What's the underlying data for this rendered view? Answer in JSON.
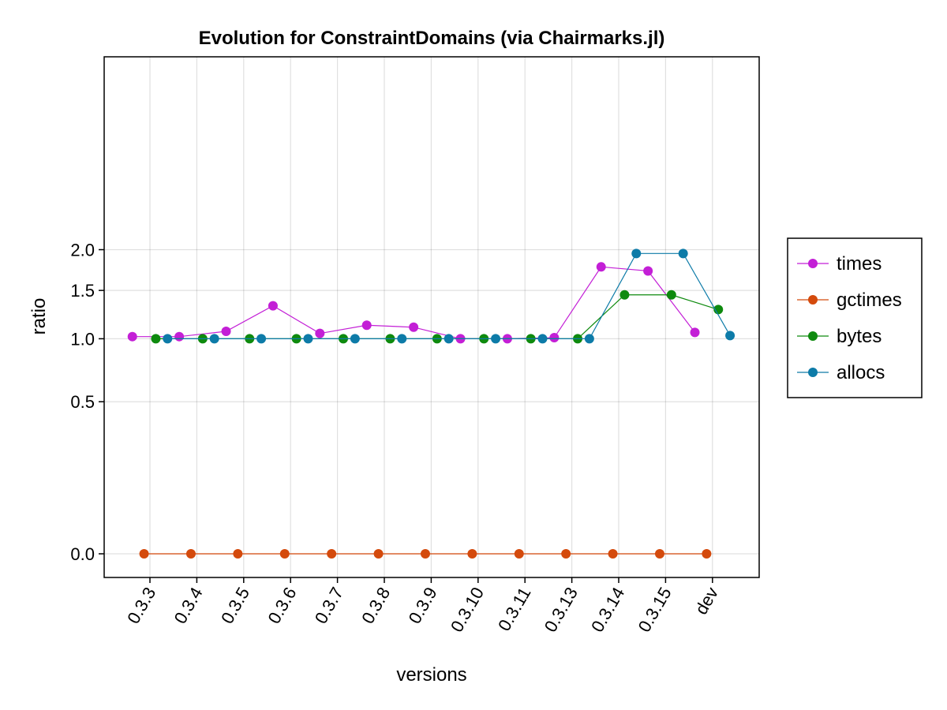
{
  "chart_data": {
    "type": "line",
    "title": "Evolution for ConstraintDomains (via Chairmarks.jl)",
    "xlabel": "versions",
    "ylabel": "ratio",
    "categories": [
      "0.3.3",
      "0.3.4",
      "0.3.5",
      "0.3.6",
      "0.3.7",
      "0.3.8",
      "0.3.9",
      "0.3.10",
      "0.3.11",
      "0.3.13",
      "0.3.14",
      "0.3.15",
      "dev"
    ],
    "y_ticks": [
      "0.0",
      "0.5",
      "1.0",
      "1.5",
      "2.0"
    ],
    "y_scale": "sqrt",
    "ylim": [
      -0.08,
      2.06
    ],
    "grid": true,
    "legend_position": "right",
    "series": [
      {
        "name": "times",
        "color": "#c31fd6",
        "offset": -0.375,
        "values": [
          1.02,
          1.02,
          1.07,
          1.33,
          1.05,
          1.13,
          1.11,
          1.0,
          1.0,
          1.01,
          1.78,
          1.73,
          1.06
        ]
      },
      {
        "name": "gctimes",
        "color": "#d44a0c",
        "offset": -0.125,
        "values": [
          0.0,
          0.0,
          0.0,
          0.0,
          0.0,
          0.0,
          0.0,
          0.0,
          0.0,
          0.0,
          0.0,
          0.0,
          0.0
        ]
      },
      {
        "name": "bytes",
        "color": "#0e8a0e",
        "offset": 0.125,
        "values": [
          1.0,
          1.0,
          1.0,
          1.0,
          1.0,
          1.0,
          1.0,
          1.0,
          1.0,
          1.0,
          1.45,
          1.45,
          1.29
        ]
      },
      {
        "name": "allocs",
        "color": "#0d7ba8",
        "offset": 0.375,
        "values": [
          1.0,
          1.0,
          1.0,
          1.0,
          1.0,
          1.0,
          1.0,
          1.0,
          1.0,
          1.0,
          1.95,
          1.95,
          1.03
        ]
      }
    ]
  }
}
